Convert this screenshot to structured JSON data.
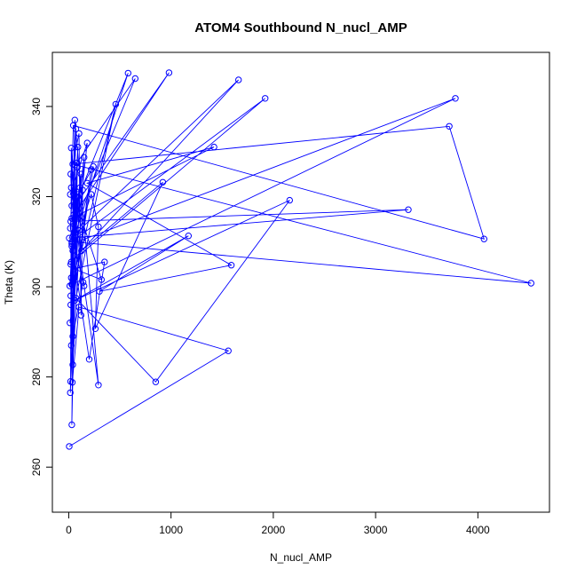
{
  "chart_data": {
    "type": "line",
    "title": "ATOM4 Southbound N_nucl_AMP",
    "xlabel": "N_nucl_AMP",
    "ylabel": "Theta (K)",
    "xlim": [
      -160,
      4700
    ],
    "ylim": [
      250,
      352
    ],
    "xticks": [
      0,
      1000,
      2000,
      3000,
      4000
    ],
    "yticks": [
      260,
      280,
      300,
      320,
      340
    ],
    "grid": false,
    "legend": "none",
    "series_color": "#0000ff",
    "series": [
      {
        "markers": "open-circle",
        "points": [
          [
            5,
            264.6
          ],
          [
            1560,
            285.8
          ],
          [
            100,
            295.5
          ],
          [
            35,
            278.8
          ],
          [
            80,
            327.5
          ],
          [
            650,
            346.2
          ],
          [
            5,
            310.8
          ],
          [
            3320,
            317.1
          ],
          [
            20,
            314.5
          ],
          [
            45,
            335.8
          ],
          [
            4060,
            310.6
          ],
          [
            3720,
            335.6
          ],
          [
            40,
            327.2
          ],
          [
            4520,
            300.8
          ],
          [
            30,
            310.0
          ],
          [
            1920,
            341.8
          ],
          [
            25,
            305.5
          ],
          [
            1660,
            345.9
          ],
          [
            100,
            312.5
          ],
          [
            30,
            300.5
          ],
          [
            3780,
            341.8
          ],
          [
            30,
            309.5
          ],
          [
            580,
            347.4
          ],
          [
            60,
            318.0
          ],
          [
            980,
            347.5
          ],
          [
            30,
            315.2
          ],
          [
            1420,
            331.0
          ],
          [
            180,
            323.0
          ],
          [
            1590,
            304.8
          ],
          [
            300,
            299.0
          ],
          [
            1170,
            311.3
          ],
          [
            60,
            297.0
          ],
          [
            2160,
            319.2
          ],
          [
            850,
            278.9
          ],
          [
            70,
            297.5
          ],
          [
            460,
            340.5
          ],
          [
            125,
            308.0
          ],
          [
            920,
            323.2
          ],
          [
            260,
            290.7
          ],
          [
            290,
            313.3
          ],
          [
            220,
            320.5
          ],
          [
            40,
            308.0
          ],
          [
            200,
            283.9
          ],
          [
            350,
            305.5
          ],
          [
            50,
            304.0
          ],
          [
            320,
            301.6
          ],
          [
            25,
            322.0
          ],
          [
            150,
            300.2
          ],
          [
            290,
            278.2
          ],
          [
            60,
            337.0
          ],
          [
            20,
            296.0
          ],
          [
            85,
            326.5
          ],
          [
            30,
            269.4
          ],
          [
            60,
            327.0
          ],
          [
            25,
            302.0
          ],
          [
            40,
            282.7
          ],
          [
            150,
            328.7
          ],
          [
            10,
            300.2
          ],
          [
            90,
            331.0
          ],
          [
            20,
            298.0
          ],
          [
            180,
            331.9
          ],
          [
            15,
            320.5
          ],
          [
            135,
            321.5
          ],
          [
            120,
            293.7
          ],
          [
            100,
            334.0
          ],
          [
            20,
            325.0
          ],
          [
            30,
            318.0
          ],
          [
            240,
            326.7
          ],
          [
            12,
            292.0
          ],
          [
            220,
            326.0
          ],
          [
            130,
            310.5
          ],
          [
            35,
            300.5
          ],
          [
            60,
            315.0
          ],
          [
            15,
            276.5
          ],
          [
            110,
            322.0
          ],
          [
            20,
            305.0
          ],
          [
            65,
            311.0
          ],
          [
            25,
            330.8
          ],
          [
            18,
            279.0
          ],
          [
            70,
            335.0
          ],
          [
            15,
            313.0
          ],
          [
            140,
            301.0
          ],
          [
            40,
            289.0
          ],
          [
            120,
            325.0
          ],
          [
            30,
            309.0
          ],
          [
            25,
            287.0
          ],
          [
            90,
            320.0
          ],
          [
            50,
            316.0
          ]
        ]
      }
    ]
  }
}
